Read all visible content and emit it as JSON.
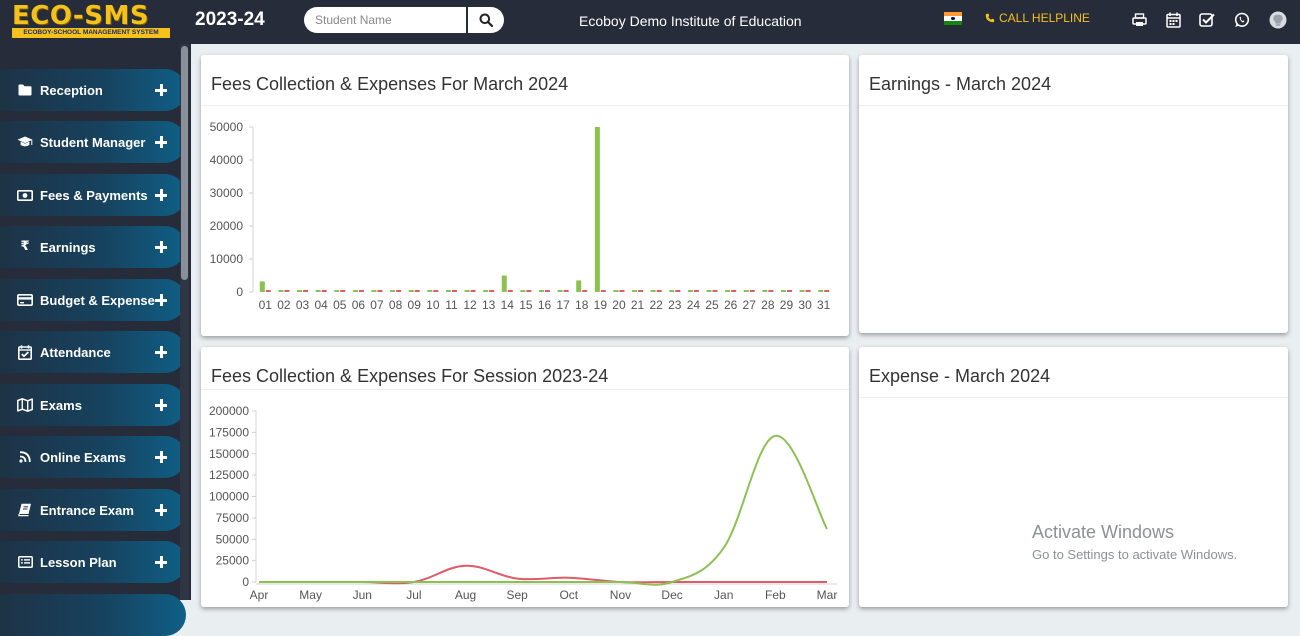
{
  "header": {
    "logo_text": "ECO-SMS",
    "logo_subtitle": "ECOBOY-SCHOOL MANAGEMENT SYSTEM",
    "session": "2023-24",
    "search_placeholder": "Student Name",
    "institute": "Ecoboy Demo Institute of Education",
    "helpline": "CALL HELPLINE",
    "accent_color": "#f4c21a"
  },
  "sidebar": {
    "items": [
      {
        "label": "Reception",
        "icon": "folder-icon"
      },
      {
        "label": "Student Manager",
        "icon": "graduation-cap-icon"
      },
      {
        "label": "Fees & Payments",
        "icon": "money-icon"
      },
      {
        "label": "Earnings",
        "icon": "rupee-icon"
      },
      {
        "label": "Budget & Expense",
        "icon": "credit-card-icon"
      },
      {
        "label": "Attendance",
        "icon": "calendar-check-icon"
      },
      {
        "label": "Exams",
        "icon": "map-icon"
      },
      {
        "label": "Online Exams",
        "icon": "rss-icon"
      },
      {
        "label": "Entrance Exam",
        "icon": "book-icon"
      },
      {
        "label": "Lesson Plan",
        "icon": "list-icon"
      }
    ]
  },
  "cards": {
    "fees_month_title": "Fees Collection & Expenses For March 2024",
    "earnings_title": "Earnings - March 2024",
    "fees_session_title": "Fees Collection & Expenses For Session 2023-24",
    "expense_title": "Expense - March 2024"
  },
  "watermark": {
    "line1": "Activate Windows",
    "line2": "Go to Settings to activate Windows."
  },
  "chart_data": [
    {
      "type": "bar",
      "title": "Fees Collection & Expenses For March 2024",
      "categories": [
        "01",
        "02",
        "03",
        "04",
        "05",
        "06",
        "07",
        "08",
        "09",
        "10",
        "11",
        "12",
        "13",
        "14",
        "15",
        "16",
        "17",
        "18",
        "19",
        "20",
        "21",
        "22",
        "23",
        "24",
        "25",
        "26",
        "27",
        "28",
        "29",
        "30",
        "31"
      ],
      "series": [
        {
          "color": "#8cc152",
          "values": [
            3200,
            0,
            0,
            0,
            0,
            0,
            0,
            0,
            0,
            0,
            0,
            0,
            0,
            5000,
            0,
            0,
            0,
            3500,
            50000,
            0,
            0,
            0,
            0,
            0,
            0,
            0,
            0,
            0,
            0,
            0,
            0
          ]
        },
        {
          "color": "#e05a67",
          "values": [
            0,
            0,
            0,
            0,
            0,
            0,
            0,
            0,
            0,
            0,
            0,
            0,
            0,
            0,
            0,
            0,
            0,
            0,
            0,
            0,
            0,
            0,
            0,
            0,
            0,
            0,
            0,
            0,
            0,
            0,
            0
          ]
        }
      ],
      "ylim": [
        0,
        50000
      ],
      "yticks": [
        0,
        10000,
        20000,
        30000,
        40000,
        50000
      ],
      "grid": false
    },
    {
      "type": "line",
      "title": "Fees Collection & Expenses For Session 2023-24",
      "categories": [
        "Apr",
        "May",
        "Jun",
        "Jul",
        "Aug",
        "Sep",
        "Oct",
        "Nov",
        "Dec",
        "Jan",
        "Feb",
        "Mar"
      ],
      "series": [
        {
          "color": "#8cc152",
          "values": [
            0,
            0,
            0,
            0,
            0,
            0,
            0,
            0,
            0,
            40000,
            171000,
            62000
          ]
        },
        {
          "color": "#e05a67",
          "values": [
            0,
            0,
            0,
            0,
            19000,
            4000,
            5000,
            0,
            0,
            0,
            0,
            0
          ]
        }
      ],
      "ylim": [
        0,
        200000
      ],
      "yticks": [
        0,
        25000,
        50000,
        75000,
        100000,
        125000,
        150000,
        175000,
        200000
      ],
      "grid": false
    }
  ]
}
